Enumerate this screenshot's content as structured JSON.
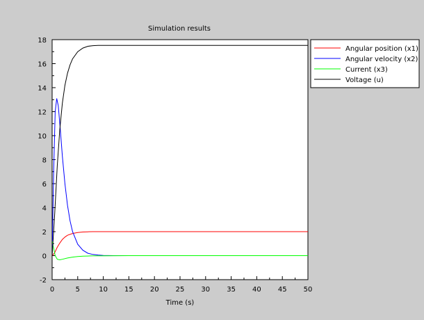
{
  "chart_data": {
    "type": "line",
    "title": "Simulation results",
    "xlabel": "Time (s)",
    "ylabel": "",
    "xlim": [
      0,
      50
    ],
    "ylim": [
      -2,
      18
    ],
    "xticks": [
      0,
      5,
      10,
      15,
      20,
      25,
      30,
      35,
      40,
      45,
      50
    ],
    "yticks": [
      -2,
      0,
      2,
      4,
      6,
      8,
      10,
      12,
      14,
      16,
      18
    ],
    "grid": false,
    "legend_position": "outside-right",
    "series": [
      {
        "name": "Angular position (x1)",
        "color": "#ff0000",
        "x": [
          0,
          0.5,
          1,
          1.5,
          2,
          2.5,
          3,
          4,
          5,
          6,
          7,
          8,
          10,
          15,
          20,
          30,
          40,
          50
        ],
        "y": [
          0,
          0.25,
          0.7,
          1.05,
          1.35,
          1.55,
          1.7,
          1.85,
          1.93,
          1.97,
          1.99,
          2.0,
          2.0,
          2.0,
          2.0,
          2.0,
          2.0,
          2.0
        ]
      },
      {
        "name": "Angular velocity (x2)",
        "color": "#0000ff",
        "x": [
          0,
          0.3,
          0.6,
          0.9,
          1.2,
          1.6,
          2,
          2.5,
          3,
          3.5,
          4,
          5,
          6,
          7,
          8,
          9,
          10,
          12,
          15,
          18.5
        ],
        "y": [
          0,
          7,
          12,
          13.1,
          12.5,
          10.5,
          8.3,
          6,
          4.2,
          2.9,
          2.0,
          0.95,
          0.45,
          0.2,
          0.1,
          0.05,
          0.02,
          0.0,
          0.0,
          0.0
        ]
      },
      {
        "name": "Current (x3)",
        "color": "#00ff00",
        "x": [
          0,
          0.3,
          0.6,
          1,
          1.5,
          2,
          3,
          4,
          5,
          6,
          8,
          10,
          15,
          20,
          30,
          40,
          50
        ],
        "y": [
          1.2,
          0.6,
          0.0,
          -0.3,
          -0.35,
          -0.3,
          -0.2,
          -0.12,
          -0.07,
          -0.04,
          -0.02,
          -0.01,
          0.0,
          0.0,
          0.0,
          0.0,
          0.0
        ]
      },
      {
        "name": "Voltage (u)",
        "color": "#000000",
        "x": [
          0,
          0.5,
          1,
          1.5,
          2,
          2.5,
          3,
          3.5,
          4,
          5,
          6,
          7,
          8,
          9,
          10,
          15,
          20,
          30,
          40,
          50
        ],
        "y": [
          0,
          3.5,
          7.5,
          10.5,
          12.7,
          14.2,
          15.2,
          15.9,
          16.4,
          17.0,
          17.3,
          17.45,
          17.5,
          17.52,
          17.52,
          17.52,
          17.52,
          17.52,
          17.52,
          17.52
        ]
      }
    ]
  }
}
